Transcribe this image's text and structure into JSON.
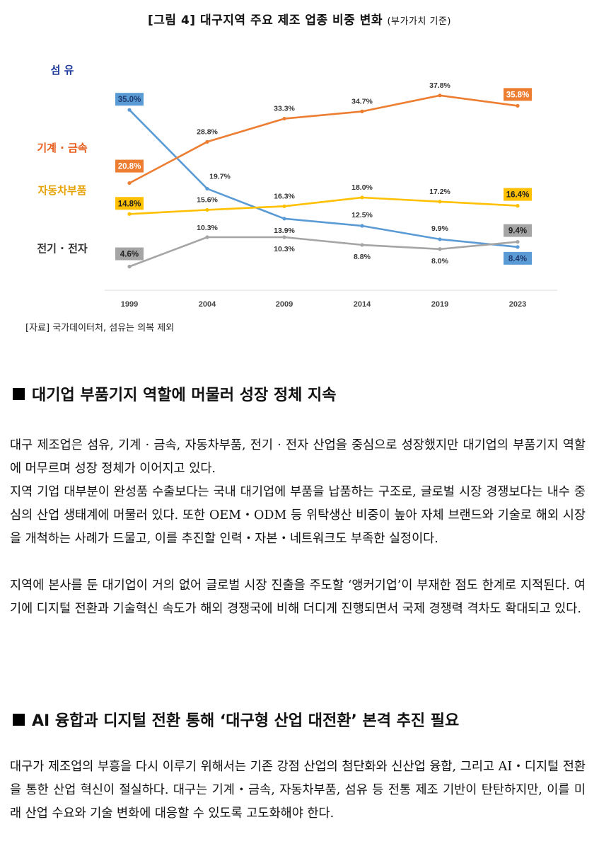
{
  "figure": {
    "title": "[그림 4] 대구지역 주요 제조 업종 비중 변화",
    "title_sub": "(부가가치 기준)",
    "source": "[자료] 국가데이터처, 섬유는 의복 제외"
  },
  "chart_data": {
    "type": "line",
    "x": [
      "1999",
      "2004",
      "2009",
      "2014",
      "2019",
      "2023"
    ],
    "ylim": [
      0,
      40
    ],
    "grid": false,
    "legend": "left labels",
    "series": [
      {
        "name": "섬    유",
        "color": "#5b9bd5",
        "values": [
          35.0,
          19.7,
          13.9,
          12.5,
          9.9,
          8.4
        ],
        "labels": [
          "35.0%",
          "19.7%",
          "13.9%",
          "12.5%",
          "9.9%",
          "8.4%"
        ]
      },
      {
        "name": "기계 · 금속",
        "color": "#ed7d31",
        "values": [
          20.8,
          28.8,
          33.3,
          34.7,
          37.8,
          35.8
        ],
        "labels": [
          "20.8%",
          "28.8%",
          "33.3%",
          "34.7%",
          "37.8%",
          "35.8%"
        ]
      },
      {
        "name": "자동차부품",
        "color": "#ffc000",
        "values": [
          14.8,
          15.6,
          16.3,
          18.0,
          17.2,
          16.4
        ],
        "labels": [
          "14.8%",
          "15.6%",
          "16.3%",
          "18.0%",
          "17.2%",
          "16.4%"
        ]
      },
      {
        "name": "전기 · 전자",
        "color": "#a5a5a5",
        "values": [
          4.6,
          10.3,
          10.3,
          8.8,
          8.0,
          9.4
        ],
        "labels": [
          "4.6%",
          "10.3%",
          "10.3%",
          "8.8%",
          "8.0%",
          "9.4%"
        ]
      }
    ],
    "legend_label_colors": [
      "#1f3b9c",
      "#e65c1a",
      "#e6a100",
      "#333333"
    ]
  },
  "section1": {
    "heading": "대기업 부품기지 역할에 머물러 성장 정체 지속",
    "paragraphs": [
      " 대구 제조업은 섬유, 기계 · 금속, 자동차부품, 전기 · 전자 산업을 중심으로 성장했지만 대기업의 부품기지 역할에 머무르며 성장 정체가 이어지고 있다.",
      " 지역 기업 대부분이 완성품 수출보다는 국내 대기업에 부품을 납품하는 구조로, 글로벌 시장 경쟁보다는 내수 중심의 산업 생태계에 머물러 있다. 또한 OEM・ODM 등 위탁생산 비중이 높아 자체 브랜드와 기술로 해외 시장을 개척하는 사례가 드물고, 이를 추진할 인력・자본・네트워크도 부족한 실정이다.",
      " 지역에 본사를 둔 대기업이 거의 없어 글로벌 시장 진출을 주도할 ‘앵커기업’이 부재한 점도 한계로 지적된다. 여기에 디지털 전환과 기술혁신 속도가 해외 경쟁국에 비해 더디게 진행되면서 국제 경쟁력 격차도 확대되고 있다."
    ]
  },
  "section2": {
    "heading": "AI 융합과 디지털 전환 통해  ‘대구형 산업 대전환’  본격 추진 필요",
    "paragraphs": [
      " 대구가 제조업의 부흥을 다시 이루기 위해서는 기존 강점 산업의 첨단화와 신산업 융합, 그리고 AI・디지털 전환을 통한 산업 혁신이 절실하다. 대구는 기계・금속, 자동차부품, 섬유 등 전통 제조 기반이 탄탄하지만, 이를 미래 산업 수요와 기술 변화에 대응할 수 있도록 고도화해야 한다."
    ]
  }
}
